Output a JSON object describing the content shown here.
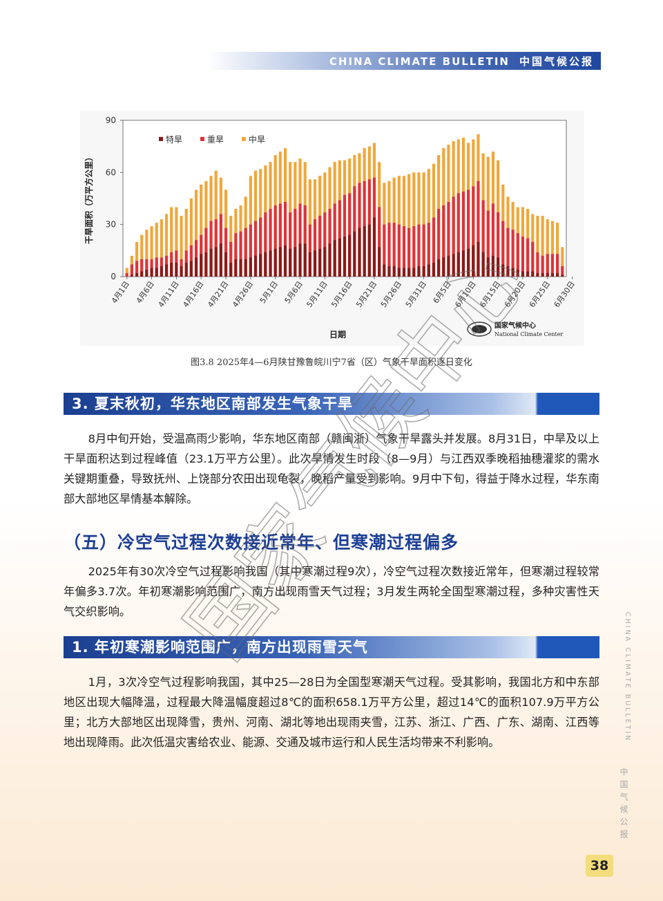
{
  "header": {
    "en": "CHINA CLIMATE BULLETIN",
    "cn": "中国气候公报"
  },
  "chart_data": {
    "type": "bar",
    "stacked": true,
    "ylabel": "干旱面积（万平方公里）",
    "xlabel": "日期",
    "ylim": [
      0,
      90
    ],
    "yticks": [
      "0",
      "30",
      "60",
      "90"
    ],
    "legend_position": "top-left",
    "colors": {
      "特旱": "#8b1a1a",
      "重旱": "#e0333a",
      "中旱": "#f0a73a"
    },
    "series_names": [
      "特旱",
      "重旱",
      "中旱"
    ],
    "xtick_labels": [
      "4月1日",
      "4月6日",
      "4月11日",
      "4月16日",
      "4月21日",
      "4月26日",
      "5月1日",
      "5月6日",
      "5月11日",
      "5月16日",
      "5月21日",
      "5月26日",
      "5月31日",
      "6月5日",
      "6月10日",
      "6月15日",
      "6月20日",
      "6月25日",
      "6月30日"
    ],
    "total": [
      5,
      12,
      20,
      24,
      27,
      29,
      31,
      33,
      36,
      40,
      40,
      35,
      39,
      45,
      50,
      53,
      55,
      58,
      61,
      57,
      50,
      35,
      39,
      41,
      46,
      58,
      61,
      62,
      64,
      66,
      70,
      72,
      74,
      66,
      66,
      68,
      66,
      56,
      56,
      58,
      60,
      63,
      66,
      67,
      67,
      68,
      70,
      71,
      74,
      75,
      77,
      66,
      54,
      55,
      57,
      58,
      58,
      59,
      60,
      60,
      60,
      62,
      65,
      70,
      74,
      76,
      78,
      79,
      80,
      77,
      79,
      82,
      71,
      69,
      72,
      67,
      53,
      46,
      43,
      40,
      40,
      39,
      36,
      35,
      35,
      33,
      32,
      31,
      17
    ],
    "heavy_mod": [
      2,
      7,
      9,
      10,
      10,
      10,
      11,
      11,
      12,
      14,
      15,
      10,
      15,
      18,
      21,
      24,
      28,
      32,
      33,
      36,
      28,
      20,
      25,
      26,
      28,
      30,
      32,
      34,
      37,
      39,
      41,
      42,
      43,
      37,
      39,
      42,
      41,
      30,
      33,
      35,
      37,
      39,
      42,
      44,
      47,
      48,
      52,
      54,
      55,
      56,
      57,
      40,
      30,
      31,
      31,
      30,
      29,
      28,
      29,
      30,
      30,
      31,
      34,
      39,
      41,
      43,
      46,
      48,
      49,
      50,
      52,
      55,
      44,
      38,
      42,
      37,
      32,
      28,
      27,
      25,
      23,
      22,
      20,
      14,
      12,
      13,
      13,
      13,
      6
    ],
    "extreme": [
      0,
      1,
      2,
      3,
      4,
      5,
      5,
      6,
      7,
      8,
      8,
      6,
      8,
      9,
      11,
      13,
      14,
      16,
      17,
      19,
      14,
      8,
      10,
      10,
      10,
      11,
      12,
      13,
      14,
      15,
      16,
      17,
      18,
      16,
      17,
      19,
      19,
      14,
      15,
      16,
      17,
      19,
      21,
      22,
      23,
      24,
      26,
      28,
      29,
      30,
      34,
      17,
      7,
      6,
      6,
      5,
      5,
      5,
      5,
      6,
      6,
      7,
      8,
      10,
      11,
      12,
      13,
      14,
      15,
      16,
      18,
      20,
      14,
      11,
      12,
      11,
      7,
      6,
      5,
      4,
      3,
      3,
      3,
      2,
      2,
      2,
      2,
      2,
      1
    ],
    "logo_cn": "国家气候中心",
    "logo_en": "National Climate Center"
  },
  "caption": "图3.8  2025年4—6月陕甘豫鲁皖川宁7省（区）气象干旱面积逐日变化",
  "section3": {
    "title": "3. 夏末秋初，华东地区南部发生气象干旱",
    "text": "8月中旬开始，受温高雨少影响，华东地区南部（赣闽浙）气象干旱露头并发展。8月31日，中旱及以上干旱面积达到过程峰值（23.1万平方公里）。此次旱情发生时段（8—9月）与江西双季晚稻抽穗灌浆的需水关键期重叠，导致抚州、上饶部分农田出现龟裂，晚稻产量受到影响。9月中下旬，得益于降水过程，华东南部大部地区旱情基本解除。"
  },
  "section5": {
    "title": "（五）冷空气过程次数接近常年、但寒潮过程偏多",
    "text": "2025年有30次冷空气过程影响我国（其中寒潮过程9次），冷空气过程次数接近常年，但寒潮过程较常年偏多3.7次。年初寒潮影响范围广，南方出现雨雪天气过程；3月发生两轮全国型寒潮过程，多种灾害性天气交织影响。"
  },
  "section1": {
    "title": "1. 年初寒潮影响范围广，南方出现雨雪天气",
    "text": "1月，3次冷空气过程影响我国，其中25—28日为全国型寒潮天气过程。受其影响，我国北方和中东部地区出现大幅降温，过程最大降温幅度超过8℃的面积658.1万平方公里，超过14℃的面积107.9万平方公里；北方大部地区出现降雪，贵州、河南、湖北等地出现雨夹雪，江苏、浙江、广西、广东、湖南、江西等地出现降雨。此次低温灾害给农业、能源、交通及城市运行和人民生活均带来不利影响。"
  },
  "side": {
    "en": "CHINA CLIMATE BULLETIN",
    "cn": "中国气候公报"
  },
  "page_number": "38",
  "watermark": "国家气候中心"
}
